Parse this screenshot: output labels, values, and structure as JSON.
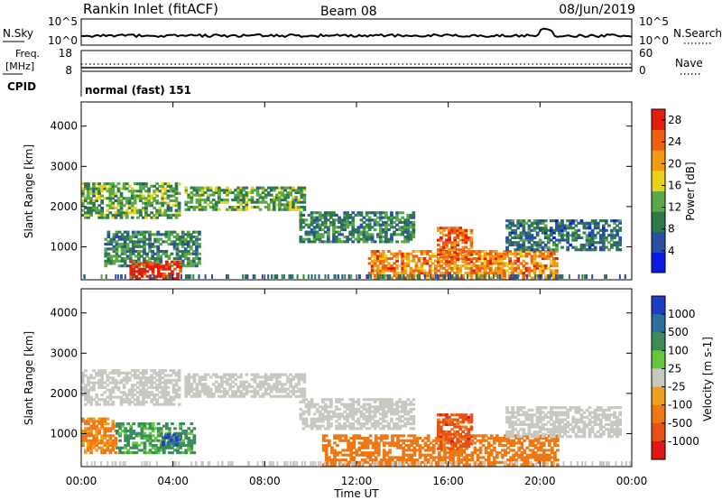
{
  "header": {
    "station": "Rankin Inlet (fitACF)",
    "beam": "Beam 08",
    "date": "08/Jun/2019"
  },
  "noise_panel": {
    "left_label": "N.Sky",
    "right_label": "N.Search",
    "left_ticks": [
      "10^5",
      "10^0"
    ],
    "right_ticks": [
      "10^5",
      "10^0"
    ]
  },
  "freq_panel": {
    "left_label_line1": "Freq.",
    "left_label_line2": "[MHz]",
    "right_label": "Nave",
    "left_ticks": [
      "18",
      "8"
    ],
    "right_ticks": [
      "60",
      "0"
    ]
  },
  "cpid": {
    "label": "CPID",
    "value": "normal (fast) 151"
  },
  "colors": {
    "power_scale": [
      "#0a1ae6",
      "#2a4fa0",
      "#2f7a4a",
      "#5aa848",
      "#e8d21c",
      "#f29a14",
      "#ee6010",
      "#e41e0c"
    ],
    "velocity_scale": [
      "#1e3cc8",
      "#2d6ea0",
      "#3c8c5a",
      "#64c83c",
      "#c8c8c0",
      "#f0a01e",
      "#f07814",
      "#e65014",
      "#e61414"
    ]
  },
  "chart_data": [
    {
      "type": "heatmap",
      "title": "",
      "quantity": "Power",
      "xlabel": "Time UT",
      "ylabel": "Slant Range [km]",
      "xlim": [
        "00:00",
        "00:00"
      ],
      "x_ticks": [
        "00:00",
        "04:00",
        "08:00",
        "12:00",
        "16:00",
        "20:00",
        "00:00"
      ],
      "ylim": [
        180,
        4600
      ],
      "y_ticks": [
        1000,
        2000,
        3000,
        4000
      ],
      "colorbar": {
        "label": "Power [dB]",
        "ticks": [
          4,
          8,
          12,
          16,
          20,
          24,
          28
        ],
        "range": [
          0,
          30
        ]
      },
      "regions": [
        {
          "t_start": 0.0,
          "t_end": 4.3,
          "r_min": 1700,
          "r_max": 2600,
          "level": 12
        },
        {
          "t_start": 1.0,
          "t_end": 5.2,
          "r_min": 500,
          "r_max": 1400,
          "level": 10
        },
        {
          "t_start": 4.5,
          "t_end": 9.8,
          "r_min": 1900,
          "r_max": 2500,
          "level": 12
        },
        {
          "t_start": 9.5,
          "t_end": 14.5,
          "r_min": 1100,
          "r_max": 1900,
          "level": 10
        },
        {
          "t_start": 12.5,
          "t_end": 20.8,
          "r_min": 200,
          "r_max": 900,
          "level": 22
        },
        {
          "t_start": 15.5,
          "t_end": 17.0,
          "r_min": 600,
          "r_max": 1500,
          "level": 24
        },
        {
          "t_start": 18.5,
          "t_end": 23.5,
          "r_min": 900,
          "r_max": 1700,
          "level": 8
        },
        {
          "t_start": 2.1,
          "t_end": 4.4,
          "r_min": 180,
          "r_max": 650,
          "level": 29
        }
      ]
    },
    {
      "type": "heatmap",
      "title": "",
      "quantity": "Velocity",
      "xlabel": "Time UT",
      "ylabel": "Slant Range [km]",
      "xlim": [
        "00:00",
        "00:00"
      ],
      "x_ticks": [
        "00:00",
        "04:00",
        "08:00",
        "12:00",
        "16:00",
        "20:00",
        "00:00"
      ],
      "ylim": [
        180,
        4600
      ],
      "y_ticks": [
        1000,
        2000,
        3000,
        4000
      ],
      "colorbar": {
        "label": "Velocity [m s-1]",
        "ticks": [
          "1000",
          "500",
          "100",
          "25",
          "-25",
          "-100",
          "-500",
          "-1000"
        ]
      },
      "regions": [
        {
          "t_start": 0.0,
          "t_end": 4.3,
          "r_min": 1700,
          "r_max": 2600,
          "level": 0
        },
        {
          "t_start": 0.0,
          "t_end": 1.5,
          "r_min": 500,
          "r_max": 1400,
          "level": -150
        },
        {
          "t_start": 1.5,
          "t_end": 5.0,
          "r_min": 500,
          "r_max": 1300,
          "level": 150
        },
        {
          "t_start": 3.5,
          "t_end": 4.3,
          "r_min": 700,
          "r_max": 1000,
          "level": 1000
        },
        {
          "t_start": 4.5,
          "t_end": 9.8,
          "r_min": 1900,
          "r_max": 2500,
          "level": 0
        },
        {
          "t_start": 9.5,
          "t_end": 14.5,
          "r_min": 1100,
          "r_max": 1900,
          "level": 0
        },
        {
          "t_start": 10.5,
          "t_end": 20.8,
          "r_min": 200,
          "r_max": 1000,
          "level": -300
        },
        {
          "t_start": 15.5,
          "t_end": 17.0,
          "r_min": 600,
          "r_max": 1500,
          "level": -700
        },
        {
          "t_start": 18.5,
          "t_end": 23.5,
          "r_min": 900,
          "r_max": 1700,
          "level": 0
        }
      ]
    }
  ]
}
